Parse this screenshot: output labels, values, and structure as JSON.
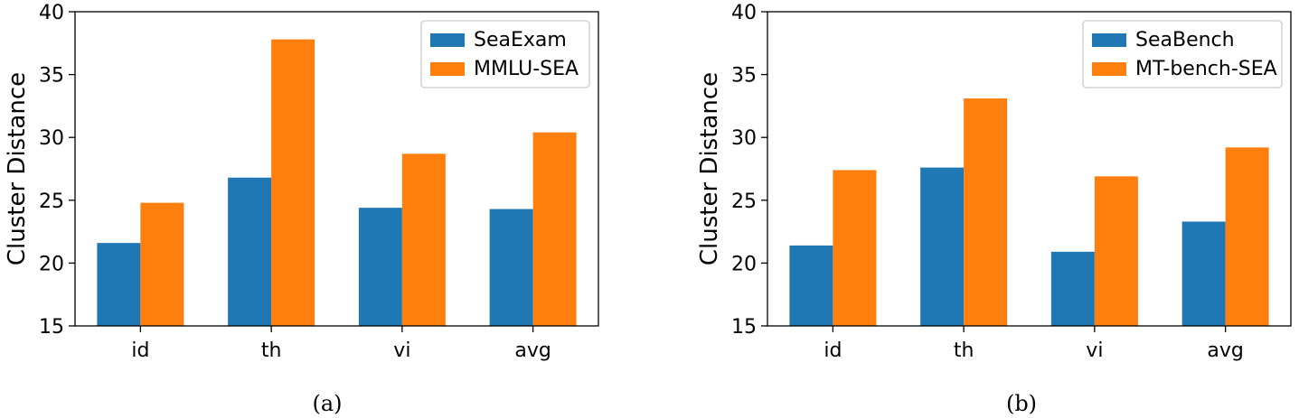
{
  "chart_data": [
    {
      "type": "bar",
      "caption": "(a)",
      "categories": [
        "id",
        "th",
        "vi",
        "avg"
      ],
      "series": [
        {
          "name": "SeaExam",
          "color": "#1f77b4",
          "values": [
            21.6,
            26.8,
            24.4,
            24.3
          ]
        },
        {
          "name": "MMLU-SEA",
          "color": "#ff7f0e",
          "values": [
            24.8,
            37.8,
            28.7,
            30.4
          ]
        }
      ],
      "title": "",
      "xlabel": "",
      "ylabel": "Cluster Distance",
      "ylim": [
        15,
        40
      ],
      "yticks": [
        15,
        20,
        25,
        30,
        35,
        40
      ],
      "legend_position": "top-right",
      "grid": false
    },
    {
      "type": "bar",
      "caption": "(b)",
      "categories": [
        "id",
        "th",
        "vi",
        "avg"
      ],
      "series": [
        {
          "name": "SeaBench",
          "color": "#1f77b4",
          "values": [
            21.4,
            27.6,
            20.9,
            23.3
          ]
        },
        {
          "name": "MT-bench-SEA",
          "color": "#ff7f0e",
          "values": [
            27.4,
            33.1,
            26.9,
            29.2
          ]
        }
      ],
      "title": "",
      "xlabel": "",
      "ylabel": "Cluster Distance",
      "ylim": [
        15,
        40
      ],
      "yticks": [
        15,
        20,
        25,
        30,
        35,
        40
      ],
      "legend_position": "top-right",
      "grid": false
    }
  ]
}
